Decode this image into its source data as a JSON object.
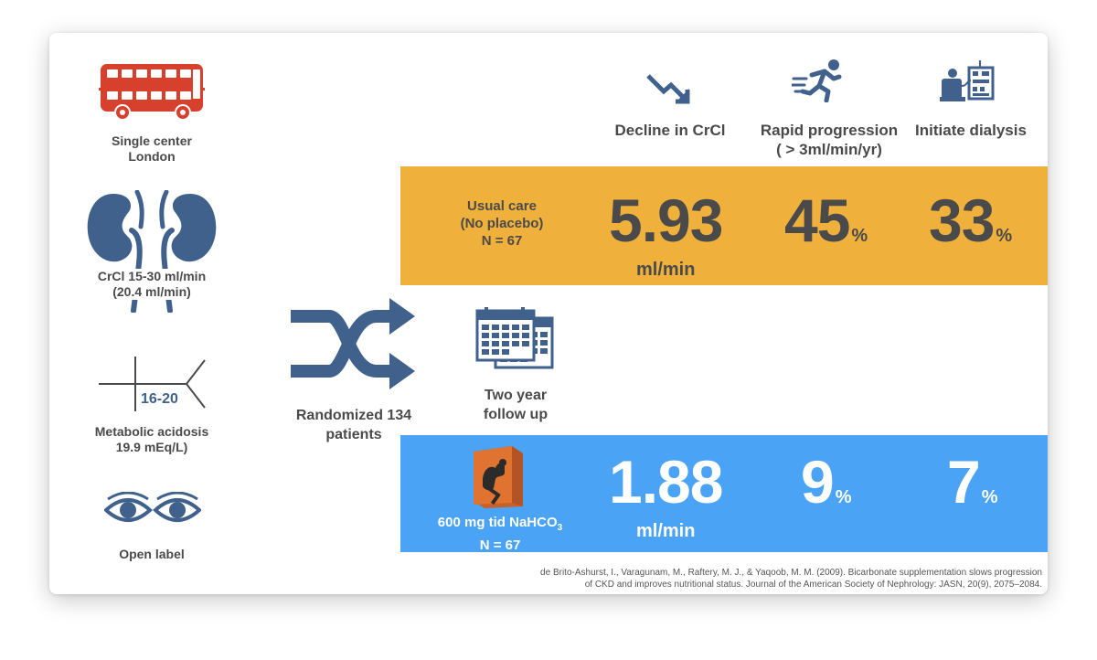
{
  "left_column": {
    "setting": {
      "line1": "Single center",
      "line2": "London",
      "icon": "double-decker-bus-icon"
    },
    "kidney": {
      "line1": "CrCl 15-30 ml/min",
      "line2": "(20.4 ml/min)",
      "icon": "kidneys-icon"
    },
    "acidosis": {
      "icon_value": "16-20",
      "line1": "Metabolic acidosis",
      "line2": "19.9 mEq/L)",
      "icon": "fishbone-icon"
    },
    "blinding": {
      "line1": "Open label",
      "icon": "eyes-icon"
    }
  },
  "randomization": {
    "line1": "Randomized 134",
    "line2": "patients",
    "icon": "shuffle-icon"
  },
  "follow_up": {
    "line1": "Two year",
    "line2": "follow up",
    "icon": "calendar-icon"
  },
  "columns": [
    {
      "icon": "decline-arrow-icon",
      "line1": "Decline in CrCl",
      "line2": ""
    },
    {
      "icon": "running-person-icon",
      "line1": "Rapid progression",
      "line2": "( > 3ml/min/yr)"
    },
    {
      "icon": "dialysis-machine-icon",
      "line1": "Initiate dialysis",
      "line2": ""
    }
  ],
  "usual_care": {
    "line1": "Usual care",
    "line2": "(No placebo)",
    "line3": "N = 67",
    "decline": "5.93",
    "decline_unit": "ml/min",
    "rapid": "45",
    "dialysis": "33",
    "pct_sign": "%"
  },
  "bicarbonate": {
    "line1_main": "600 mg tid NaHCO",
    "line1_sub": "3",
    "line2": "N = 67",
    "icon": "strength-box-icon",
    "decline": "1.88",
    "decline_unit": "ml/min",
    "rapid": "9",
    "dialysis": "7",
    "pct_sign": "%"
  },
  "citation": {
    "line1": "de Brito-Ashurst, I., Varagunam, M., Raftery, M. J., & Yaqoob, M. M. (2009). Bicarbonate supplementation slows progression",
    "line2": "of CKD and improves nutritional status. Journal of the American Society of Nephrology: JASN, 20(9), 2075–2084."
  },
  "colors": {
    "orange": "#f0b03c",
    "blue": "#4aa3f5",
    "slate": "#3f618c",
    "bus_red": "#d6402c",
    "text": "#4a4a4a"
  }
}
